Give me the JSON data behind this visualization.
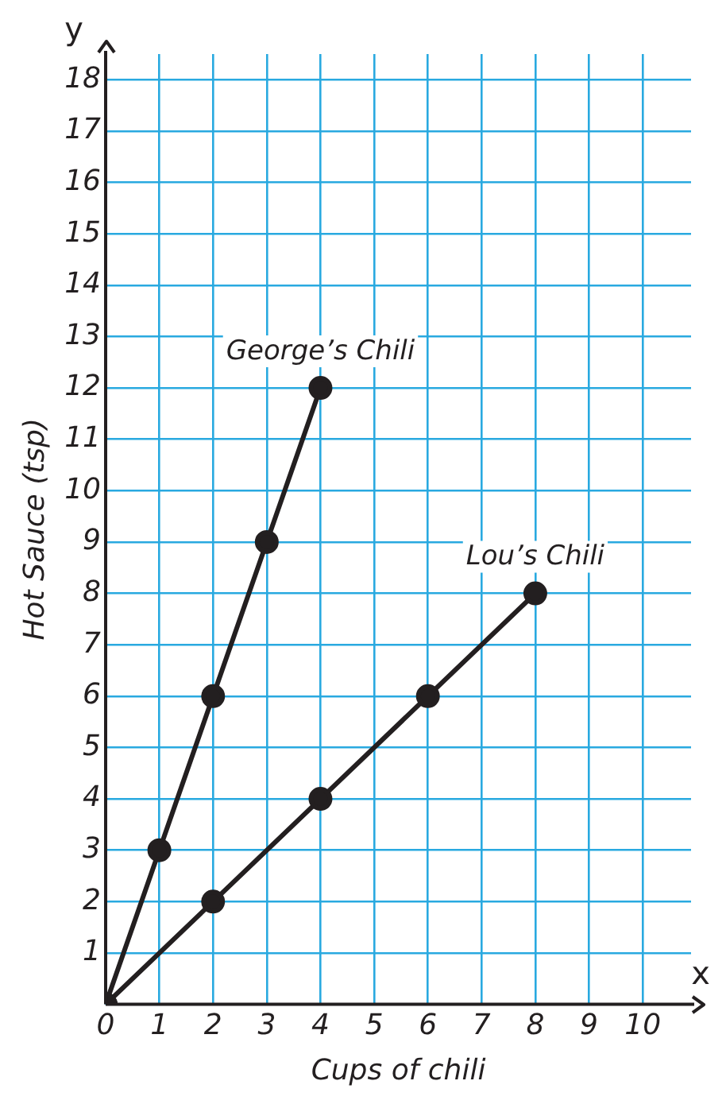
{
  "chart_data": {
    "type": "line",
    "xlabel": "Cups of chili",
    "ylabel": "Hot Sauce (tsp)",
    "annotations": [
      "x",
      "y"
    ],
    "xlim": [
      0,
      10.9
    ],
    "ylim": [
      0,
      18.5
    ],
    "xticks": [
      0,
      1,
      2,
      3,
      4,
      5,
      6,
      7,
      8,
      9,
      10
    ],
    "yticks": [
      {
        "value": 0,
        "label": null
      },
      1,
      2,
      3,
      4,
      5,
      6,
      7,
      8,
      9,
      10,
      11,
      12,
      13,
      14,
      15,
      16,
      17,
      18
    ],
    "grid": true,
    "marker": "circle",
    "line_style": "solid",
    "legend": false,
    "series": [
      {
        "name": "George’s Chili",
        "color": "#231f20",
        "x": [
          0,
          1,
          2,
          3,
          4
        ],
        "values": [
          0,
          3,
          6,
          9,
          12
        ]
      },
      {
        "name": "Lou’s Chili",
        "color": "#231f20",
        "x": [
          0,
          2,
          4,
          6,
          8
        ],
        "values": [
          0,
          2,
          4,
          6,
          8
        ]
      }
    ]
  }
}
